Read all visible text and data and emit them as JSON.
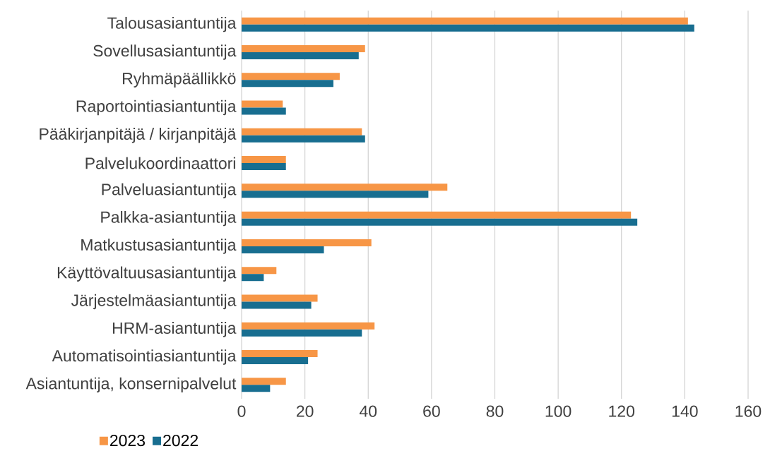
{
  "chart_data": {
    "type": "bar",
    "orientation": "horizontal",
    "categories": [
      "Talousasiantuntija",
      "Sovellusasiantuntija",
      "Ryhmäpäällikkö",
      "Raportointiasiantuntija",
      "Pääkirjanpitäjä / kirjanpitäjä",
      "Palvelukoordinaattori",
      "Palveluasiantuntija",
      "Palkka-asiantuntija",
      "Matkustusasiantuntija",
      "Käyttövaltuusasiantuntija",
      "Järjestelmäasiantuntija",
      "HRM-asiantuntija",
      "Automatisointiasiantuntija",
      "Asiantuntija, konsernipalvelut"
    ],
    "series": [
      {
        "name": "2023",
        "color": "#f79646",
        "values": [
          141,
          39,
          31,
          13,
          38,
          14,
          65,
          123,
          41,
          11,
          24,
          42,
          24,
          14
        ]
      },
      {
        "name": "2022",
        "color": "#186e90",
        "values": [
          143,
          37,
          29,
          14,
          39,
          14,
          59,
          125,
          26,
          7,
          22,
          38,
          21,
          9
        ]
      }
    ],
    "xlim": [
      0,
      160
    ],
    "xticks": [
      0,
      20,
      40,
      60,
      80,
      100,
      120,
      140,
      160
    ],
    "grid": "x",
    "legend": "bottom"
  }
}
